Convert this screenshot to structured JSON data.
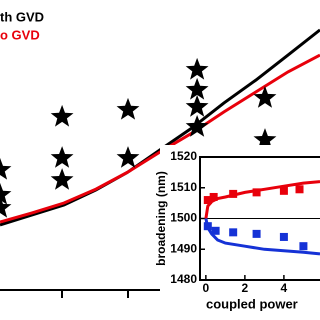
{
  "chart_data": [
    {
      "type": "line",
      "xlim": [
        0,
        10
      ],
      "ylim": [
        0,
        10
      ],
      "series": [
        {
          "name": "th GVD",
          "color": "#000000",
          "x": [
            0,
            1,
            2,
            3,
            4,
            5,
            6,
            7,
            8,
            9,
            10
          ],
          "values": [
            2.24,
            2.59,
            2.93,
            3.45,
            4.07,
            4.83,
            5.59,
            6.45,
            7.24,
            8.1,
            8.97
          ]
        },
        {
          "name": "o GVD",
          "color": "#e8000b",
          "x": [
            0,
            1,
            2,
            3,
            4,
            5,
            6,
            7,
            8,
            9,
            10
          ],
          "values": [
            2.34,
            2.66,
            3.0,
            3.48,
            4.07,
            4.76,
            5.41,
            6.14,
            6.83,
            7.52,
            8.1
          ]
        },
        {
          "color": "#000000",
          "marker": "star",
          "x": [
            0,
            0,
            0,
            1.94,
            1.94,
            1.94,
            4,
            4,
            6.16,
            6.16,
            6.16,
            6.16,
            8.28,
            8.28
          ],
          "values": [
            4.14,
            3.28,
            2.83,
            5.97,
            4.55,
            3.79,
            6.21,
            4.55,
            7.59,
            6.9,
            6.31,
            5.62,
            6.62,
            5.17
          ]
        }
      ]
    },
    {
      "type": "scatter",
      "xlabel": "coupled power",
      "ylabel": "broadening (nm)",
      "xlim": [
        -0.3,
        5.85
      ],
      "ylim": [
        1480,
        1520
      ],
      "xticks": [
        0,
        2,
        4
      ],
      "yticks": [
        1480,
        1490,
        1500,
        1510,
        1520
      ],
      "reference_line": 1500,
      "series": [
        {
          "color": "#e8000b",
          "marker": "square",
          "x": [
            0.1,
            0.4,
            1.4,
            2.6,
            4.0,
            4.8
          ],
          "values": [
            1506,
            1507,
            1508,
            1508.5,
            1509,
            1509.5
          ]
        },
        {
          "color": "#1532d6",
          "marker": "square",
          "x": [
            0.1,
            0.5,
            1.4,
            2.6,
            4.0,
            5.0
          ],
          "values": [
            1497.5,
            1496,
            1495.5,
            1495,
            1494,
            1491
          ]
        },
        {
          "color": "#e8000b",
          "x": [
            0,
            0.1,
            0.3,
            0.6,
            1,
            2,
            3,
            4,
            5,
            5.85
          ],
          "values": [
            1500,
            1504,
            1505.5,
            1506.5,
            1507,
            1508.5,
            1509.5,
            1510.5,
            1511.5,
            1512
          ]
        },
        {
          "color": "#1532d6",
          "x": [
            0,
            0.1,
            0.3,
            0.6,
            1,
            2,
            3,
            4,
            5,
            5.85
          ],
          "values": [
            1500,
            1497,
            1495,
            1493,
            1492,
            1491,
            1490,
            1489.5,
            1489,
            1488.5
          ]
        }
      ]
    }
  ]
}
